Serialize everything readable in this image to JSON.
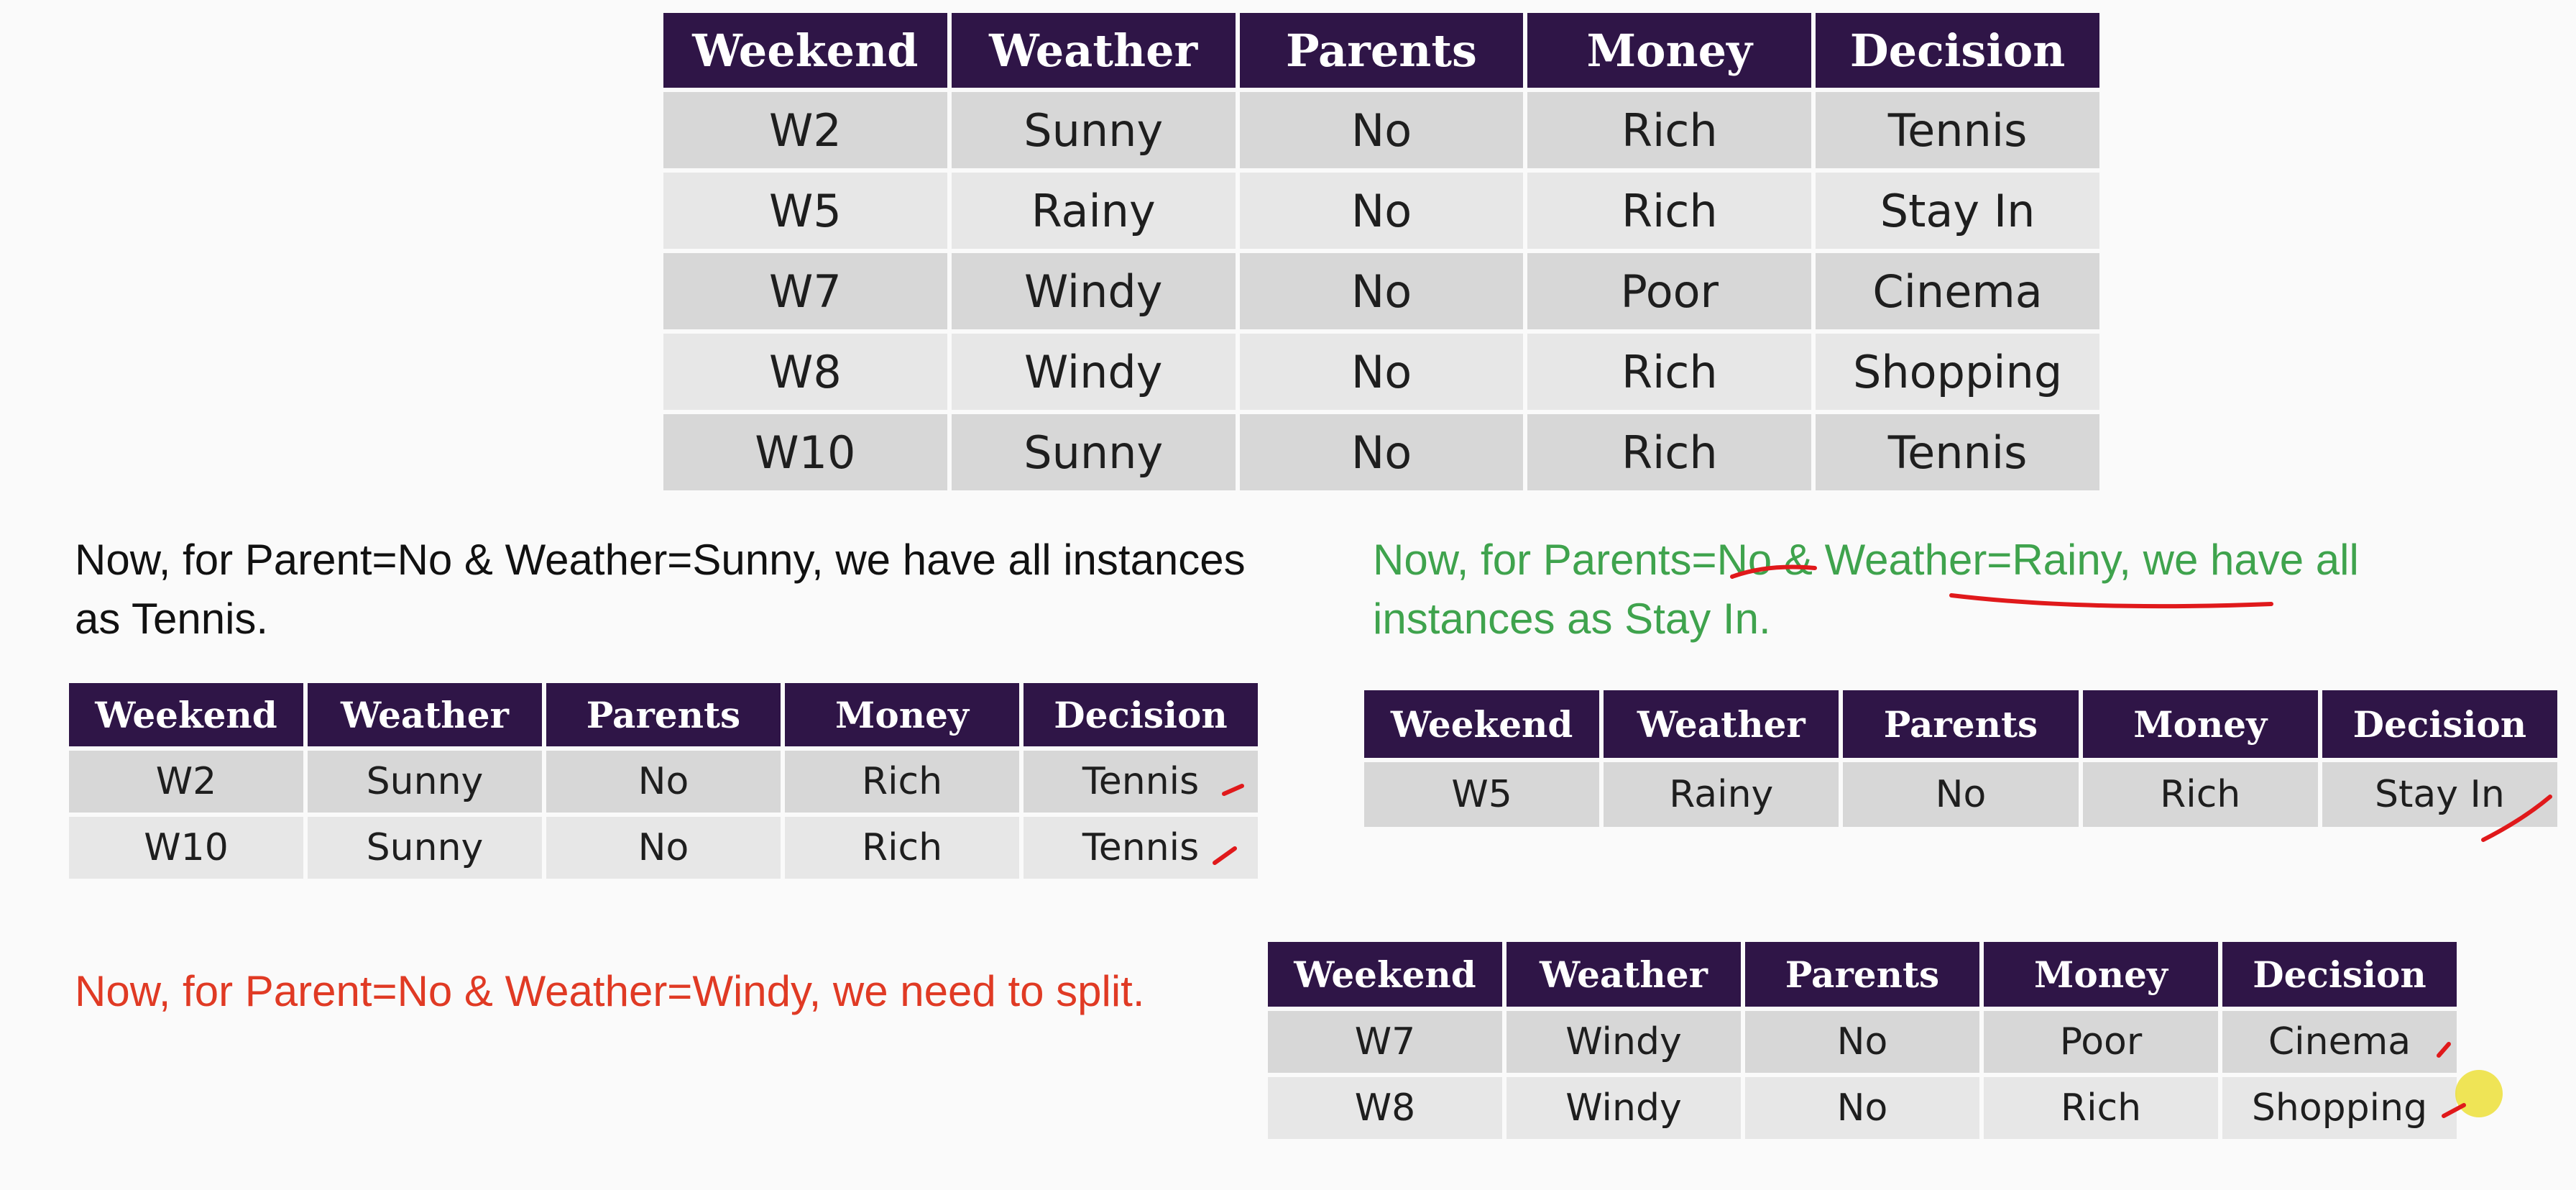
{
  "columns": [
    "Weekend",
    "Weather",
    "Parents",
    "Money",
    "Decision"
  ],
  "main_table": {
    "rows": [
      [
        "W2",
        "Sunny",
        "No",
        "Rich",
        "Tennis"
      ],
      [
        "W5",
        "Rainy",
        "No",
        "Rich",
        "Stay In"
      ],
      [
        "W7",
        "Windy",
        "No",
        "Poor",
        "Cinema"
      ],
      [
        "W8",
        "Windy",
        "No",
        "Rich",
        "Shopping"
      ],
      [
        "W10",
        "Sunny",
        "No",
        "Rich",
        "Tennis"
      ]
    ]
  },
  "sunny_section": {
    "note": "Now, for Parent=No & Weather=Sunny, we have all instances as Tennis.",
    "rows": [
      [
        "W2",
        "Sunny",
        "No",
        "Rich",
        "Tennis"
      ],
      [
        "W10",
        "Sunny",
        "No",
        "Rich",
        "Tennis"
      ]
    ]
  },
  "rainy_section": {
    "note": "Now, for Parents=No & Weather=Rainy, we have all instances as Stay In.",
    "rows": [
      [
        "W5",
        "Rainy",
        "No",
        "Rich",
        "Stay In"
      ]
    ]
  },
  "windy_section": {
    "note": "Now, for Parent=No & Weather=Windy, we need to split.",
    "rows": [
      [
        "W7",
        "Windy",
        "No",
        "Poor",
        "Cinema"
      ],
      [
        "W8",
        "Windy",
        "No",
        "Rich",
        "Shopping"
      ]
    ]
  },
  "colors": {
    "header_bg": "#2f1547",
    "header_text": "#ffffff",
    "row_dark": "#d7d7d7",
    "row_light": "#e7e7e7",
    "note_black": "#111111",
    "note_green": "#3fa34d",
    "note_red": "#e03a24",
    "ink_red": "#e0191b",
    "cursor_highlight": "#ecde28"
  }
}
